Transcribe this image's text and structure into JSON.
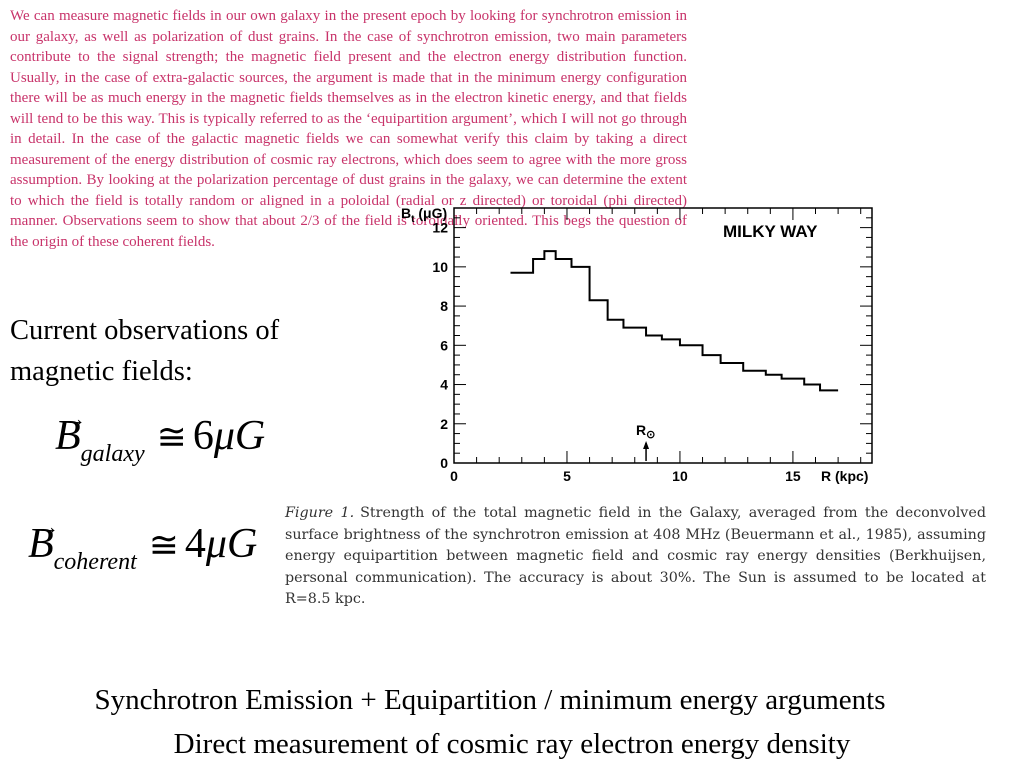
{
  "paragraph": "We can measure magnetic fields in our own galaxy in the present epoch by looking for synchrotron emission in our galaxy, as well as polarization of dust grains. In the case of synchrotron emission, two main parameters contribute to the signal strength; the magnetic field present and the electron energy distribution function. Usually, in the case of extra-galactic sources, the argument is made that in the minimum energy configuration there will be as much energy in the magnetic fields themselves as in the electron kinetic energy, and that fields will tend to be this way. This is typically referred to as the ‘equipartition argument’, which I will not go through in detail. In the case of the galactic magnetic fields we can somewhat verify this claim by taking a direct measurement of the energy distribution of cosmic ray electrons, which does seem to agree with the more gross assumption. By looking at the polarization percentage of dust grains in the galaxy, we can determine the extent to which the field is totally random or aligned in a poloidal (radial or z directed) or toroidal (phi directed) manner. Observations seem to show that about 2/3 of the field is toroidally oriented. This begs the question of the origin of these coherent fields.",
  "heading": "Current observations of magnetic fields:",
  "equations": {
    "galaxy": {
      "symbol": "B",
      "vector_mark": "→",
      "subscript": "galaxy",
      "relation": "≅",
      "value": "6",
      "mu": "μ",
      "unit": "G"
    },
    "coherent": {
      "symbol": "B",
      "vector_mark": "→",
      "subscript": "coherent",
      "relation": "≅",
      "value": "4",
      "mu": "μ",
      "unit": "G"
    }
  },
  "caption": {
    "figure_label": "Figure 1.",
    "text": "Strength of the total magnetic field in the Galaxy, averaged from the deconvolved surface brightness of the synchrotron emission at 408 MHz (Beuermann et al., 1985), assuming energy equipartition between magnetic field and cosmic ray energy densities (Berkhuijsen, personal communication). The accuracy is about 30%. The Sun is assumed to be located at R=8.5 kpc."
  },
  "bottom": {
    "line1": "Synchrotron Emission + Equipartition / minimum energy arguments",
    "line2": "Direct measurement of cosmic ray electron energy density"
  },
  "chart_data": {
    "type": "line",
    "title": "MILKY WAY",
    "ylabel": "B_t (μG)",
    "xlabel": "R (kpc)",
    "xlim": [
      0,
      18.5
    ],
    "ylim": [
      0,
      13
    ],
    "x_ticks": [
      0,
      5,
      10,
      15
    ],
    "y_ticks": [
      0,
      2,
      4,
      6,
      8,
      10,
      12
    ],
    "x_tick_labels": [
      "0",
      "5",
      "10",
      "15"
    ],
    "y_tick_labels": [
      "0",
      "2",
      "4",
      "6",
      "8",
      "10",
      "12"
    ],
    "step_edges": [
      2.5,
      3.5,
      4.0,
      4.5,
      5.2,
      6.0,
      6.8,
      7.5,
      8.5,
      9.2,
      10.0,
      11.0,
      11.8,
      12.8,
      13.8,
      14.5,
      15.5,
      16.2,
      17.0
    ],
    "step_values": [
      9.7,
      10.4,
      10.8,
      10.4,
      10.0,
      8.3,
      7.3,
      6.9,
      6.5,
      6.3,
      6.0,
      5.5,
      5.1,
      4.7,
      4.5,
      4.3,
      4.0,
      3.7
    ],
    "annotation": {
      "label": "R",
      "sun_symbol": "⊙",
      "x": 8.5,
      "arrow": true
    },
    "grid": false
  }
}
